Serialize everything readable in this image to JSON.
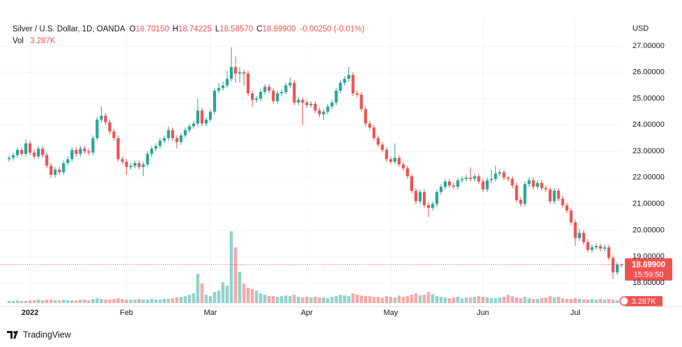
{
  "chart_data": {
    "type": "candlestick",
    "header": {
      "symbol": "Silver / U.S. Dollar, 1D, OANDA",
      "ohlc": [
        {
          "key": "O",
          "value": "18.70150"
        },
        {
          "key": "H",
          "value": "18.74225"
        },
        {
          "key": "L",
          "value": "18.58570"
        },
        {
          "key": "C",
          "value": "18.69900"
        }
      ],
      "change": "-0.00250 (-0.01%)",
      "volume_key": "Vol",
      "volume_value": "3.287K"
    },
    "currency": "USD",
    "countdown": "15:59:50",
    "brand": "TradingView",
    "up_color": "#26a69a",
    "down_color": "#ef5350",
    "grid": true,
    "categories": [
      null,
      null,
      null,
      null,
      null,
      "2022",
      null,
      null,
      null,
      null,
      null,
      null,
      null,
      null,
      null,
      null,
      null,
      null,
      null,
      null,
      null,
      null,
      null,
      null,
      null,
      null,
      null,
      null,
      "Feb",
      null,
      null,
      null,
      null,
      null,
      null,
      null,
      null,
      null,
      null,
      null,
      null,
      null,
      null,
      null,
      null,
      null,
      null,
      null,
      "Mar",
      null,
      null,
      null,
      null,
      null,
      null,
      null,
      null,
      null,
      null,
      null,
      null,
      null,
      null,
      null,
      null,
      null,
      null,
      null,
      null,
      null,
      null,
      "Apr",
      null,
      null,
      null,
      null,
      null,
      null,
      null,
      null,
      null,
      null,
      null,
      null,
      null,
      null,
      null,
      null,
      null,
      null,
      null,
      "May",
      null,
      null,
      null,
      null,
      null,
      null,
      null,
      null,
      null,
      null,
      null,
      null,
      null,
      null,
      null,
      null,
      null,
      null,
      null,
      null,
      null,
      "Jun",
      null,
      null,
      null,
      null,
      null,
      null,
      null,
      null,
      null,
      null,
      null,
      null,
      null,
      null,
      null,
      null,
      null,
      null,
      null,
      null,
      null,
      "Jul",
      null,
      null,
      null,
      null,
      null,
      null,
      null,
      null,
      null,
      null,
      null
    ],
    "open": [
      22.7,
      22.75,
      22.85,
      23.05,
      22.9,
      23.3,
      22.95,
      22.8,
      23.1,
      22.85,
      22.45,
      22.1,
      22.3,
      22.2,
      22.55,
      22.7,
      23.05,
      22.9,
      23.1,
      23.0,
      22.95,
      23.5,
      24.2,
      24.35,
      24.1,
      23.75,
      23.5,
      22.7,
      22.6,
      22.4,
      22.45,
      22.55,
      22.4,
      22.5,
      22.9,
      23.1,
      23.2,
      23.4,
      23.5,
      23.8,
      23.5,
      23.35,
      23.6,
      23.8,
      23.95,
      24.05,
      24.55,
      24.05,
      24.2,
      24.5,
      25.3,
      25.4,
      25.5,
      25.75,
      26.2,
      25.95,
      26.0,
      25.95,
      25.2,
      24.95,
      25.0,
      25.25,
      25.45,
      25.3,
      24.9,
      25.2,
      25.25,
      25.5,
      25.6,
      24.85,
      24.95,
      24.85,
      24.75,
      24.8,
      24.55,
      24.4,
      24.5,
      24.7,
      24.85,
      25.3,
      25.6,
      25.75,
      25.9,
      25.2,
      25.15,
      24.6,
      24.05,
      23.9,
      23.5,
      23.25,
      23.05,
      22.7,
      22.6,
      22.75,
      22.5,
      22.35,
      22.05,
      21.5,
      21.1,
      21.45,
      20.95,
      20.85,
      21.0,
      21.45,
      21.65,
      21.85,
      21.7,
      21.65,
      21.9,
      21.95,
      22.0,
      21.95,
      22.05,
      21.85,
      21.55,
      21.9,
      21.95,
      22.15,
      22.2,
      22.0,
      21.95,
      21.7,
      21.15,
      21.0,
      21.75,
      21.9,
      21.65,
      21.8,
      21.6,
      21.55,
      21.1,
      21.5,
      21.2,
      20.95,
      20.75,
      20.3,
      19.7,
      19.9,
      19.55,
      19.25,
      19.35,
      19.4,
      19.3,
      19.35,
      18.95,
      18.4,
      18.7015
    ],
    "high": [
      22.85,
      22.95,
      23.15,
      23.15,
      23.45,
      23.4,
      23.05,
      23.2,
      23.2,
      22.95,
      22.55,
      22.4,
      22.4,
      22.65,
      22.8,
      23.15,
      23.15,
      23.2,
      23.2,
      23.1,
      23.6,
      24.3,
      24.7,
      24.45,
      24.2,
      23.85,
      23.6,
      22.8,
      22.7,
      22.55,
      22.65,
      22.65,
      22.6,
      23.0,
      23.2,
      23.3,
      23.5,
      23.6,
      23.95,
      23.9,
      23.6,
      23.7,
      23.9,
      24.05,
      24.15,
      25.0,
      24.65,
      24.3,
      24.6,
      25.4,
      25.6,
      25.65,
      26.05,
      26.95,
      26.6,
      26.2,
      26.1,
      26.05,
      25.3,
      25.1,
      25.35,
      25.55,
      25.55,
      25.4,
      25.3,
      25.35,
      25.6,
      25.8,
      25.7,
      25.05,
      25.05,
      24.95,
      24.9,
      24.9,
      24.65,
      24.6,
      24.8,
      24.95,
      25.4,
      25.7,
      25.85,
      26.2,
      26.0,
      25.3,
      25.25,
      24.7,
      24.15,
      24.0,
      23.6,
      23.35,
      23.15,
      22.8,
      23.3,
      22.85,
      22.6,
      22.45,
      22.15,
      21.6,
      21.55,
      21.55,
      21.05,
      21.1,
      21.55,
      21.75,
      21.95,
      21.95,
      21.8,
      22.0,
      22.05,
      22.1,
      22.4,
      22.15,
      22.15,
      21.95,
      22.0,
      22.3,
      22.45,
      22.3,
      22.3,
      22.05,
      22.05,
      21.8,
      21.25,
      21.85,
      22.0,
      22.0,
      21.9,
      21.9,
      21.7,
      21.65,
      21.6,
      21.6,
      21.3,
      21.05,
      20.85,
      20.4,
      20.05,
      20.0,
      19.65,
      19.45,
      19.5,
      19.5,
      19.45,
      19.45,
      19.05,
      18.8,
      18.74225
    ],
    "low": [
      22.6,
      22.65,
      22.75,
      22.8,
      22.8,
      22.85,
      22.7,
      22.7,
      22.75,
      22.35,
      22.0,
      22.0,
      22.1,
      22.1,
      22.45,
      22.6,
      22.8,
      22.8,
      22.9,
      22.85,
      22.85,
      23.4,
      24.1,
      24.0,
      23.65,
      23.4,
      22.6,
      22.5,
      22.1,
      22.3,
      22.35,
      22.3,
      22.05,
      22.4,
      22.8,
      23.0,
      23.1,
      23.3,
      23.4,
      23.4,
      23.1,
      23.25,
      23.5,
      23.7,
      23.85,
      23.95,
      23.95,
      23.95,
      24.1,
      24.4,
      25.2,
      25.3,
      25.4,
      25.65,
      25.6,
      25.6,
      25.5,
      25.1,
      24.7,
      24.85,
      24.9,
      25.15,
      25.2,
      24.8,
      24.8,
      25.1,
      25.15,
      25.4,
      24.75,
      24.75,
      24.0,
      24.65,
      24.65,
      24.45,
      24.3,
      24.2,
      24.4,
      24.6,
      24.75,
      25.2,
      25.5,
      25.65,
      25.1,
      25.05,
      24.5,
      23.95,
      23.8,
      23.4,
      23.15,
      22.95,
      22.6,
      22.5,
      22.5,
      22.4,
      22.25,
      21.95,
      21.4,
      21.0,
      21.0,
      20.85,
      20.5,
      20.75,
      20.9,
      21.35,
      21.55,
      21.6,
      21.55,
      21.55,
      21.8,
      21.85,
      21.85,
      21.85,
      21.75,
      21.45,
      21.45,
      21.8,
      21.85,
      22.05,
      21.9,
      21.85,
      21.6,
      21.05,
      20.9,
      20.9,
      21.65,
      21.55,
      21.55,
      21.5,
      21.45,
      21.0,
      21.0,
      21.1,
      20.85,
      20.65,
      20.2,
      19.4,
      19.6,
      19.45,
      19.15,
      19.15,
      19.25,
      19.2,
      19.2,
      18.85,
      18.15,
      18.3,
      18.5857
    ],
    "close": [
      22.75,
      22.85,
      23.05,
      22.9,
      23.3,
      22.95,
      22.8,
      23.1,
      22.85,
      22.45,
      22.1,
      22.3,
      22.2,
      22.55,
      22.7,
      23.05,
      22.9,
      23.1,
      23.0,
      22.95,
      23.5,
      24.2,
      24.35,
      24.1,
      23.75,
      23.5,
      22.7,
      22.6,
      22.4,
      22.45,
      22.55,
      22.4,
      22.5,
      22.9,
      23.1,
      23.2,
      23.4,
      23.5,
      23.8,
      23.5,
      23.35,
      23.6,
      23.8,
      23.95,
      24.05,
      24.55,
      24.05,
      24.2,
      24.5,
      25.3,
      25.4,
      25.5,
      25.75,
      26.2,
      25.95,
      26.0,
      25.95,
      25.2,
      24.95,
      25.0,
      25.25,
      25.45,
      25.3,
      24.9,
      25.2,
      25.25,
      25.5,
      25.6,
      24.85,
      24.95,
      24.85,
      24.75,
      24.8,
      24.55,
      24.4,
      24.5,
      24.7,
      24.85,
      25.3,
      25.6,
      25.75,
      25.9,
      25.2,
      25.15,
      24.6,
      24.05,
      23.9,
      23.5,
      23.25,
      23.05,
      22.7,
      22.6,
      22.75,
      22.5,
      22.35,
      22.05,
      21.5,
      21.1,
      21.45,
      20.95,
      20.85,
      21.0,
      21.45,
      21.65,
      21.85,
      21.7,
      21.65,
      21.9,
      21.95,
      22.0,
      21.95,
      22.05,
      21.85,
      21.55,
      21.9,
      21.95,
      22.15,
      22.2,
      22.0,
      21.95,
      21.7,
      21.15,
      21.0,
      21.75,
      21.9,
      21.65,
      21.8,
      21.6,
      21.55,
      21.1,
      21.5,
      21.2,
      20.95,
      20.75,
      20.3,
      19.7,
      19.9,
      19.55,
      19.25,
      19.35,
      19.4,
      19.3,
      19.35,
      18.95,
      18.4,
      18.7,
      18.699
    ],
    "volume": [
      3,
      3,
      4,
      3,
      3,
      4,
      4,
      5,
      4,
      5,
      5,
      4,
      4,
      5,
      4,
      4,
      4,
      5,
      5,
      4,
      6,
      7,
      6,
      5,
      5,
      6,
      7,
      6,
      5,
      5,
      5,
      6,
      5,
      5,
      6,
      5,
      5,
      6,
      6,
      7,
      8,
      9,
      10,
      12,
      14,
      42,
      28,
      12,
      10,
      16,
      18,
      30,
      25,
      103,
      80,
      45,
      28,
      22,
      20,
      18,
      14,
      12,
      10,
      10,
      9,
      10,
      11,
      10,
      12,
      9,
      8,
      9,
      8,
      9,
      8,
      8,
      7,
      9,
      10,
      12,
      11,
      10,
      14,
      12,
      11,
      10,
      10,
      9,
      9,
      8,
      10,
      9,
      8,
      11,
      9,
      10,
      12,
      14,
      11,
      12,
      16,
      13,
      10,
      9,
      8,
      7,
      8,
      9,
      7,
      8,
      8,
      9,
      10,
      9,
      8,
      7,
      7,
      8,
      9,
      12,
      10,
      8,
      7,
      9,
      7,
      6,
      6,
      7,
      8,
      10,
      8,
      9,
      7,
      6,
      6,
      7,
      6,
      5,
      5,
      6,
      5,
      6,
      5,
      6,
      5,
      4,
      3.287
    ],
    "ylim": [
      17.1,
      27.95
    ],
    "yticks": [
      {
        "value": 18,
        "label": "18.00000"
      },
      {
        "value": 19,
        "label": "19.00000"
      },
      {
        "value": 20,
        "label": "20.00000"
      },
      {
        "value": 21,
        "label": "21.00000"
      },
      {
        "value": 22,
        "label": "22.00000"
      },
      {
        "value": 23,
        "label": "23.00000"
      },
      {
        "value": 24,
        "label": "24.00000"
      },
      {
        "value": 25,
        "label": "25.00000"
      },
      {
        "value": 26,
        "label": "26.00000"
      },
      {
        "value": 27,
        "label": "27.00000"
      }
    ]
  }
}
